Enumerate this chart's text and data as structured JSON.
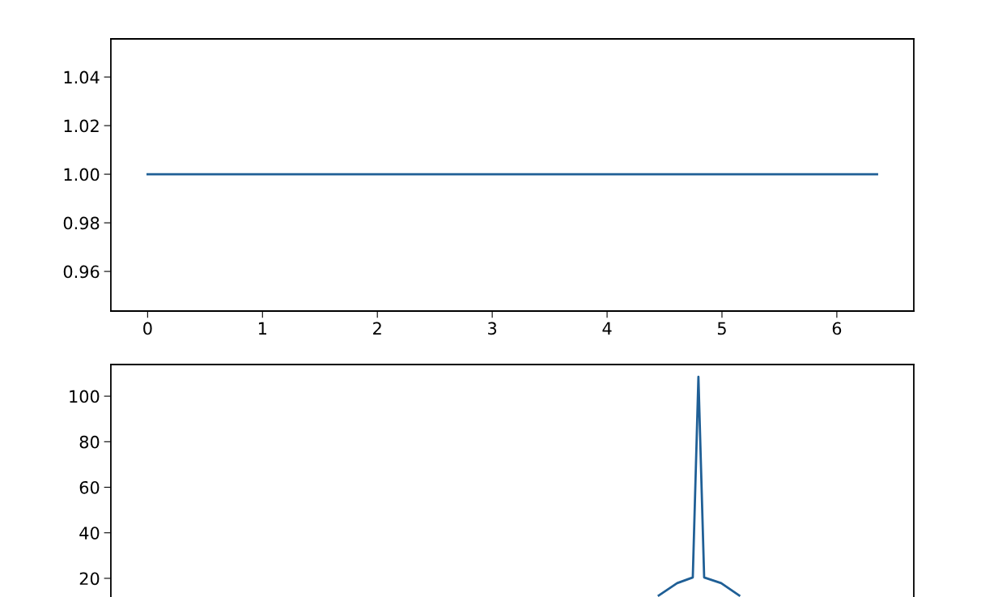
{
  "chart_data": [
    {
      "type": "line",
      "x": [
        0,
        6.35
      ],
      "series": [
        {
          "color": "#1f5f96",
          "values": [
            1.0,
            1.0
          ]
        }
      ],
      "xlim": [
        -0.32,
        6.67
      ],
      "xticks": [
        0,
        1,
        2,
        3,
        4,
        5,
        6
      ],
      "ylim": [
        0.9437,
        1.0557
      ],
      "yticks": [
        0.96,
        0.98,
        {
          "value": 1.0,
          "label": "1.00"
        },
        1.02,
        1.04
      ],
      "grid": false,
      "marker": "none",
      "line_style": "solid"
    },
    {
      "type": "line",
      "x": [
        4.45,
        4.61,
        4.746,
        4.795,
        4.845,
        4.993,
        5.15
      ],
      "series": [
        {
          "color": "#1f5f96",
          "values": [
            12.5,
            17.9,
            20.4,
            108.5,
            20.4,
            17.9,
            12.5
          ]
        }
      ],
      "xlim": [
        -0.32,
        6.67
      ],
      "ylim": [
        11.8,
        113.9
      ],
      "yticks": [
        20,
        40,
        60,
        80,
        100
      ],
      "tick_labels": "y",
      "grid": false,
      "marker": "none",
      "line_style": "solid"
    }
  ]
}
